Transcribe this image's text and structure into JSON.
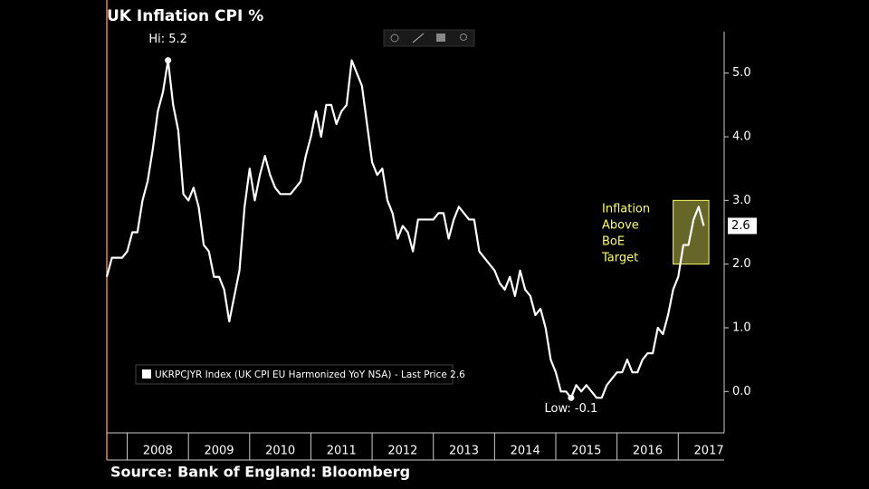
{
  "chart_data": {
    "type": "line",
    "title": "UK Inflation CPI %",
    "source": "Source: Bank of England: Bloomberg",
    "x": [
      "2007-09",
      "2007-10",
      "2007-11",
      "2007-12",
      "2008-01",
      "2008-02",
      "2008-03",
      "2008-04",
      "2008-05",
      "2008-06",
      "2008-07",
      "2008-08",
      "2008-09",
      "2008-10",
      "2008-11",
      "2008-12",
      "2009-01",
      "2009-02",
      "2009-03",
      "2009-04",
      "2009-05",
      "2009-06",
      "2009-07",
      "2009-08",
      "2009-09",
      "2009-10",
      "2009-11",
      "2009-12",
      "2010-01",
      "2010-02",
      "2010-03",
      "2010-04",
      "2010-05",
      "2010-06",
      "2010-07",
      "2010-08",
      "2010-09",
      "2010-10",
      "2010-11",
      "2010-12",
      "2011-01",
      "2011-02",
      "2011-03",
      "2011-04",
      "2011-05",
      "2011-06",
      "2011-07",
      "2011-08",
      "2011-09",
      "2011-10",
      "2011-11",
      "2011-12",
      "2012-01",
      "2012-02",
      "2012-03",
      "2012-04",
      "2012-05",
      "2012-06",
      "2012-07",
      "2012-08",
      "2012-09",
      "2012-10",
      "2012-11",
      "2012-12",
      "2013-01",
      "2013-02",
      "2013-03",
      "2013-04",
      "2013-05",
      "2013-06",
      "2013-07",
      "2013-08",
      "2013-09",
      "2013-10",
      "2013-11",
      "2013-12",
      "2014-01",
      "2014-02",
      "2014-03",
      "2014-04",
      "2014-05",
      "2014-06",
      "2014-07",
      "2014-08",
      "2014-09",
      "2014-10",
      "2014-11",
      "2014-12",
      "2015-01",
      "2015-02",
      "2015-03",
      "2015-04",
      "2015-05",
      "2015-06",
      "2015-07",
      "2015-08",
      "2015-09",
      "2015-10",
      "2015-11",
      "2015-12",
      "2016-01",
      "2016-02",
      "2016-03",
      "2016-04",
      "2016-05",
      "2016-06",
      "2016-07",
      "2016-08",
      "2016-09",
      "2016-10",
      "2016-11",
      "2016-12",
      "2017-01",
      "2017-02",
      "2017-03",
      "2017-04",
      "2017-05",
      "2017-06"
    ],
    "series": [
      {
        "name": "UKRPCJYR Index (UK CPI EU Harmonized YoY NSA) - Last Price 2.6",
        "color": "#ffffff",
        "values": [
          1.8,
          2.1,
          2.1,
          2.1,
          2.2,
          2.5,
          2.5,
          3.0,
          3.3,
          3.8,
          4.4,
          4.7,
          5.2,
          4.5,
          4.1,
          3.1,
          3.0,
          3.2,
          2.9,
          2.3,
          2.2,
          1.8,
          1.8,
          1.6,
          1.1,
          1.5,
          1.9,
          2.9,
          3.5,
          3.0,
          3.4,
          3.7,
          3.4,
          3.2,
          3.1,
          3.1,
          3.1,
          3.2,
          3.3,
          3.7,
          4.0,
          4.4,
          4.0,
          4.5,
          4.5,
          4.2,
          4.4,
          4.5,
          5.2,
          5.0,
          4.8,
          4.2,
          3.6,
          3.4,
          3.5,
          3.0,
          2.8,
          2.4,
          2.6,
          2.5,
          2.2,
          2.7,
          2.7,
          2.7,
          2.7,
          2.8,
          2.8,
          2.4,
          2.7,
          2.9,
          2.8,
          2.7,
          2.7,
          2.2,
          2.1,
          2.0,
          1.9,
          1.7,
          1.6,
          1.8,
          1.5,
          1.9,
          1.6,
          1.5,
          1.2,
          1.3,
          1.0,
          0.5,
          0.3,
          0.0,
          0.0,
          -0.1,
          0.1,
          0.0,
          0.1,
          0.0,
          -0.1,
          -0.1,
          0.1,
          0.2,
          0.3,
          0.3,
          0.5,
          0.3,
          0.3,
          0.5,
          0.6,
          0.6,
          1.0,
          0.9,
          1.2,
          1.6,
          1.8,
          2.3,
          2.3,
          2.7,
          2.9,
          2.6
        ]
      }
    ],
    "xlim": [
      "2007-09",
      "2017-10"
    ],
    "xticks": [
      "2008",
      "2009",
      "2010",
      "2011",
      "2012",
      "2013",
      "2014",
      "2015",
      "2016",
      "2017"
    ],
    "ylim": [
      -0.65,
      5.65
    ],
    "yticks": [
      {
        "value": 0,
        "label": "0.0"
      },
      {
        "value": 1,
        "label": "1.0"
      },
      {
        "value": 2,
        "label": "2.0"
      },
      {
        "value": 3,
        "label": "3.0"
      },
      {
        "value": 4,
        "label": "4.0"
      },
      {
        "value": 5,
        "label": "5.0"
      }
    ],
    "annotations": [
      {
        "text": "Hi: 5.2",
        "x": "2008-09",
        "y": 5.2
      },
      {
        "text": "Low: -0.1",
        "x": "2015-04",
        "y": -0.1
      }
    ],
    "target_band": {
      "x": [
        "2016-12",
        "2017-07"
      ],
      "y": [
        2,
        3
      ],
      "label": [
        "Inflation",
        "Above",
        "BoE",
        "Target"
      ],
      "color": "#ffff66"
    },
    "last_price": 2.6
  }
}
